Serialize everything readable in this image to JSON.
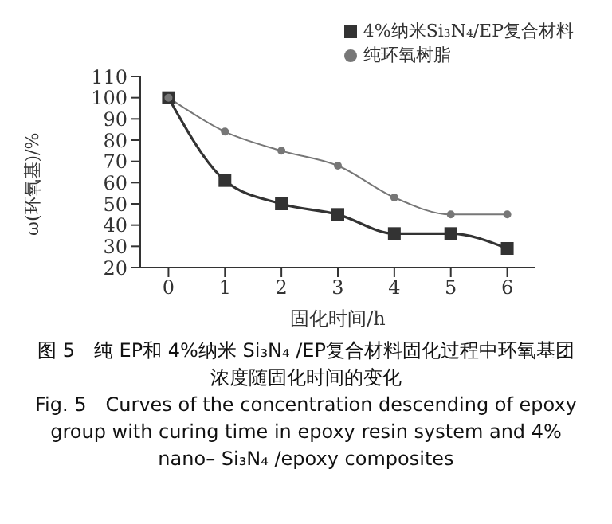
{
  "chart_data": {
    "type": "line",
    "xlabel": "固化时间/h",
    "ylabel": "ω(环氧基)/%",
    "x": [
      0,
      1,
      2,
      3,
      4,
      5,
      6
    ],
    "series": [
      {
        "name": "4%纳米Si₃N₄/EP复合材料",
        "color": "#333333",
        "marker": "square",
        "values": [
          100,
          61,
          50,
          45,
          36,
          36,
          29
        ]
      },
      {
        "name": "纯环氧树脂",
        "color": "#777777",
        "marker": "circle",
        "values": [
          100,
          84,
          75,
          68,
          53,
          45,
          45
        ]
      }
    ],
    "xlim": [
      -0.5,
      6.5
    ],
    "xticks": [
      0,
      1,
      2,
      3,
      4,
      5,
      6
    ],
    "ylim": [
      20,
      110
    ],
    "yticks": [
      20,
      30,
      40,
      50,
      60,
      70,
      80,
      90,
      100,
      110
    ],
    "grid": false,
    "legend": "top right",
    "line_style": "solid",
    "annotations": [
      "图 5　纯 EP和 4%纳米 Si₃N₄ /EP复合材料固化过程中环氧基团浓度随固化时间的变化",
      "Fig. 5　Curves of the concentration descending of epoxy group with curing time in epoxy resin system and 4% nano– Si₃N₄ /epoxy composites"
    ]
  }
}
